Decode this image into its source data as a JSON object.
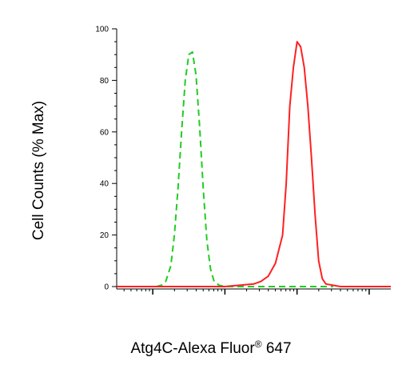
{
  "chart_data": {
    "type": "line",
    "ylabel": "Cell Counts (% Max)",
    "xlabel_main": "Atg4C-Alexa Fluor",
    "xlabel_sup": "®",
    "xlabel_tail": " 647",
    "xscale": "log",
    "xlim_log10": [
      -0.5,
      3.3
    ],
    "ylim": [
      0,
      100
    ],
    "yticks": [
      0,
      20,
      40,
      60,
      80,
      100
    ],
    "ytick_labels": [
      "0",
      "20",
      "40",
      "60",
      "80",
      "100"
    ],
    "series": [
      {
        "style": "dashed",
        "color": "#22cc22",
        "x_log10": [
          0.05,
          0.12,
          0.18,
          0.25,
          0.3,
          0.35,
          0.4,
          0.45,
          0.5,
          0.55,
          0.6,
          0.65,
          0.7,
          0.75,
          0.8,
          0.85,
          0.92,
          1.0,
          1.2,
          1.5,
          1.9,
          2.2,
          2.5
        ],
        "values": [
          0,
          0.5,
          2,
          8,
          20,
          38,
          60,
          80,
          90,
          91,
          82,
          62,
          38,
          18,
          7,
          2,
          0.5,
          0,
          0,
          0,
          0,
          0,
          0
        ]
      },
      {
        "style": "solid",
        "color": "#ff2020",
        "x_log10": [
          -0.5,
          0.5,
          1.0,
          1.2,
          1.4,
          1.5,
          1.6,
          1.7,
          1.8,
          1.85,
          1.9,
          1.95,
          2.0,
          2.05,
          2.1,
          2.15,
          2.2,
          2.25,
          2.3,
          2.35,
          2.4,
          2.5,
          2.6,
          3.0,
          3.3
        ],
        "values": [
          0,
          0,
          0,
          0.5,
          1,
          2,
          4,
          9,
          20,
          40,
          70,
          85,
          95,
          93,
          85,
          70,
          50,
          28,
          10,
          3,
          1,
          0.5,
          0,
          0,
          0
        ]
      }
    ]
  }
}
